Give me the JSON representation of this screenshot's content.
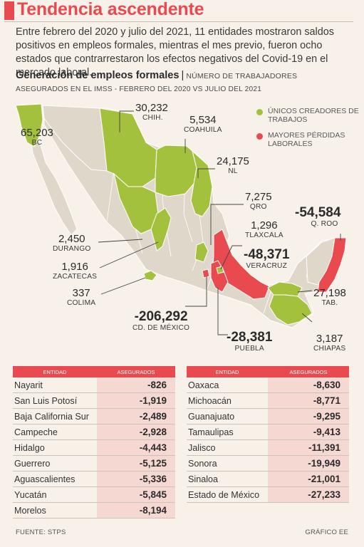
{
  "header": {
    "title": "Tendencia ascendente",
    "intro": "Entre febrero del 2020 y julio del 2021, 11 entidades mostraron saldos positivos en empleos formales, mientras el mes previo, fueron ocho estados que contrarrestaron los efectos negativos del Covid-19 en el mercado laboral.",
    "subtitle": "Generación de empleos formales",
    "subtitle_sep": "|",
    "subtitle_unit": "NÚMERO DE TRABAJADORES",
    "subtitle2": "ASEGURADOS EN EL IMSS - FEBRERO DEL 2020 VS JULIO DEL 2021"
  },
  "legend": {
    "positive": "ÚNICOS CREADORES DE TRABAJOS",
    "negative": "MAYORES PÉRDIDAS LABORALES"
  },
  "colors": {
    "positive": "#a4c13d",
    "negative": "#e84a4f",
    "neutral": "#e0d7cb",
    "accent": "#e84a4f",
    "table_value_bg": "#f6d8d3"
  },
  "chart_data": {
    "type": "map",
    "positive_states": [
      {
        "value": "30,232",
        "state": "CHIH."
      },
      {
        "value": "5,534",
        "state": "COAHUILA"
      },
      {
        "value": "65,203",
        "state": "BC"
      },
      {
        "value": "24,175",
        "state": "NL"
      },
      {
        "value": "7,275",
        "state": "QRO"
      },
      {
        "value": "1,296",
        "state": "TLAXCALA"
      },
      {
        "value": "2,450",
        "state": "DURANGO"
      },
      {
        "value": "1,916",
        "state": "ZACATECAS"
      },
      {
        "value": "337",
        "state": "COLIMA"
      },
      {
        "value": "27,198",
        "state": "TAB."
      },
      {
        "value": "3,187",
        "state": "CHIAPAS"
      }
    ],
    "negative_states": [
      {
        "value": "-54,584",
        "state": "Q. ROO"
      },
      {
        "value": "-48,371",
        "state": "VERACRUZ"
      },
      {
        "value": "-206,292",
        "state": "CD. DE MÉXICO"
      },
      {
        "value": "-28,381",
        "state": "PUEBLA"
      }
    ]
  },
  "table_headers": {
    "entidad": "ENTIDAD",
    "asegurados": "ASEGURADOS"
  },
  "table_left": [
    {
      "entidad": "Nayarit",
      "asegurados": "-826"
    },
    {
      "entidad": "San Luis Potosí",
      "asegurados": "-1,919"
    },
    {
      "entidad": "Baja California Sur",
      "asegurados": "-2,489"
    },
    {
      "entidad": "Campeche",
      "asegurados": "-2,928"
    },
    {
      "entidad": "Hidalgo",
      "asegurados": "-4,443"
    },
    {
      "entidad": "Guerrero",
      "asegurados": "-5,125"
    },
    {
      "entidad": "Aguascalientes",
      "asegurados": "-5,336"
    },
    {
      "entidad": "Yucatán",
      "asegurados": "-5,845"
    },
    {
      "entidad": "Morelos",
      "asegurados": "-8,194"
    }
  ],
  "table_right": [
    {
      "entidad": "Oaxaca",
      "asegurados": "-8,630"
    },
    {
      "entidad": "Michoacán",
      "asegurados": "-8,771"
    },
    {
      "entidad": "Guanajuato",
      "asegurados": "-9,295"
    },
    {
      "entidad": "Tamaulipas",
      "asegurados": "-9,413"
    },
    {
      "entidad": "Jalisco",
      "asegurados": "-11,391"
    },
    {
      "entidad": "Sonora",
      "asegurados": "-19,949"
    },
    {
      "entidad": "Sinaloa",
      "asegurados": "-21,001"
    },
    {
      "entidad": "Estado de México",
      "asegurados": "-27,233"
    }
  ],
  "footer": {
    "source": "FUENTE: STPS",
    "credit": "GRÁFICO EE"
  }
}
